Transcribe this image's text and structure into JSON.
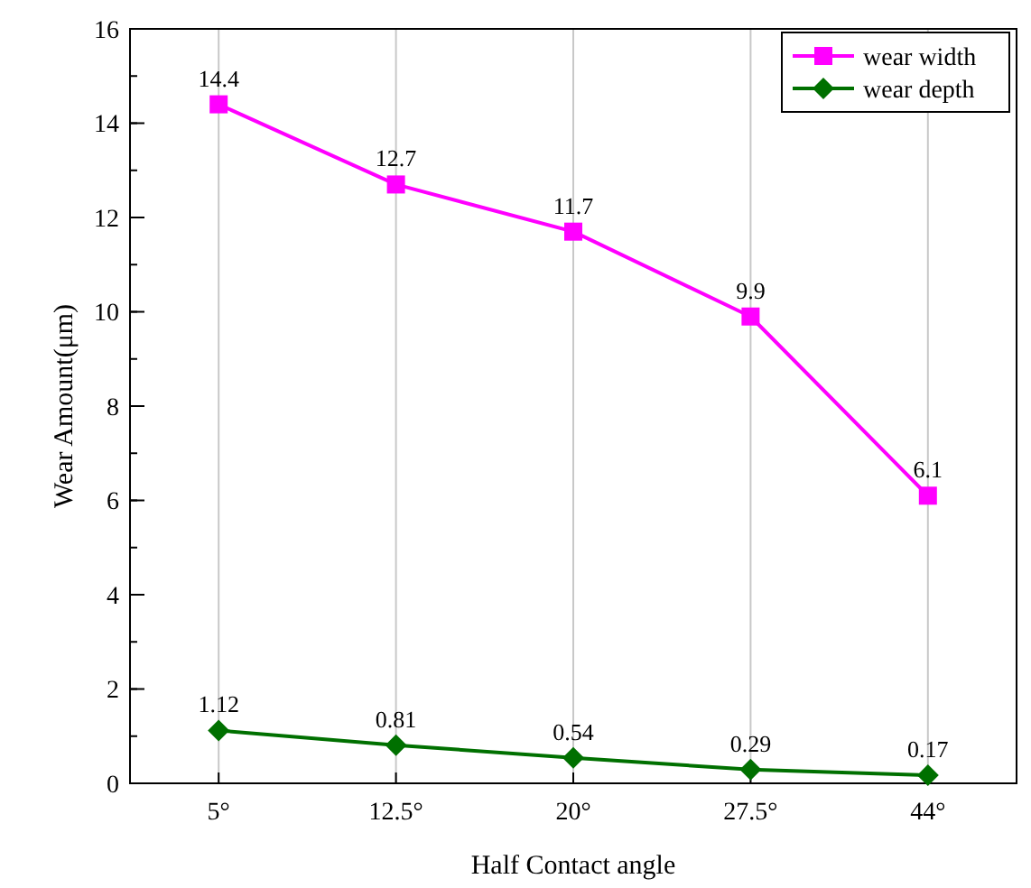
{
  "chart_data": {
    "type": "line",
    "xlabel": "Half Contact angle",
    "ylabel": "Wear Amount(μm)",
    "categories": [
      "5°",
      "12.5°",
      "20°",
      "27.5°",
      "44°"
    ],
    "series": [
      {
        "name": "wear width",
        "color": "#ff00ff",
        "marker": "square",
        "values": [
          14.4,
          12.7,
          11.7,
          9.9,
          6.1
        ]
      },
      {
        "name": "wear depth",
        "color": "#007000",
        "marker": "diamond",
        "values": [
          1.12,
          0.81,
          0.54,
          0.29,
          0.17
        ]
      }
    ],
    "ylim": [
      0,
      16
    ],
    "yticks": [
      0,
      2,
      4,
      6,
      8,
      10,
      12,
      14,
      16
    ],
    "grid": "x",
    "legend": "top right",
    "data_labels": true,
    "line_style": "solid"
  }
}
